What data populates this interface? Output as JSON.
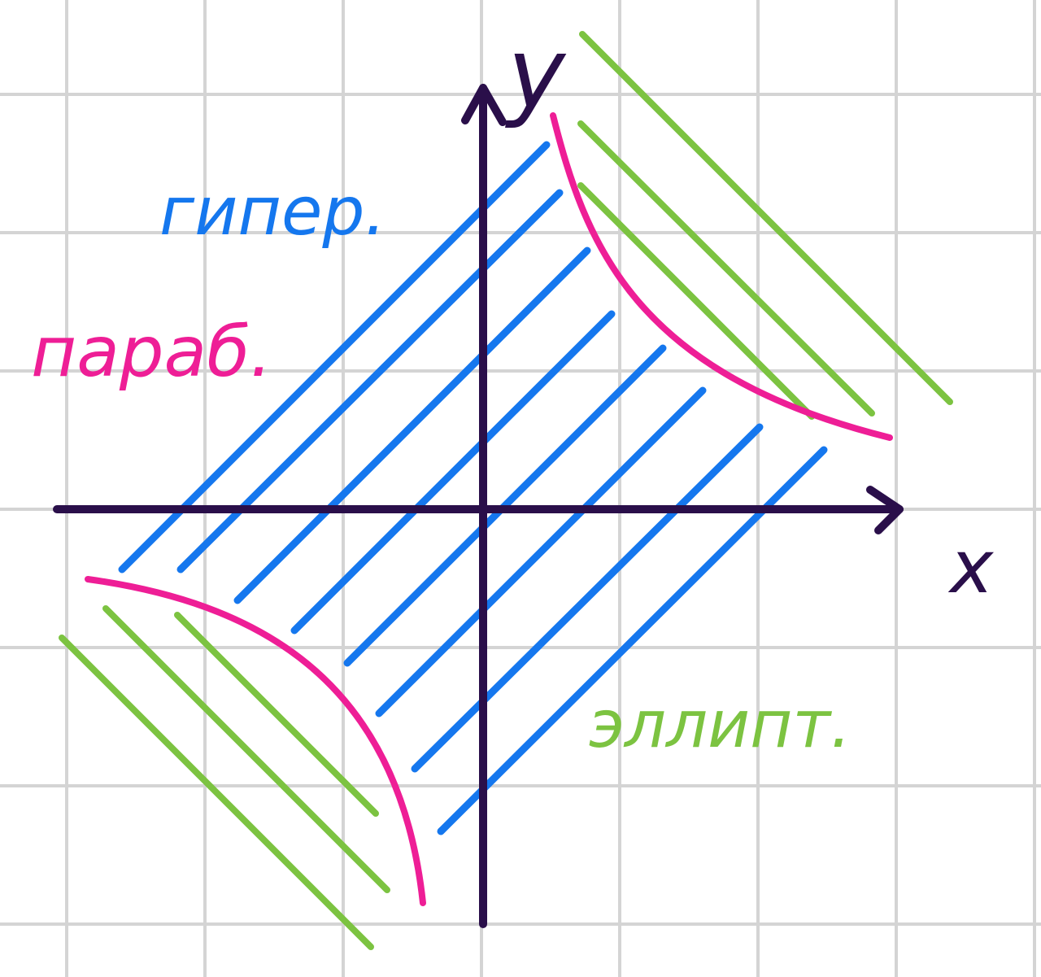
{
  "labels": {
    "y_axis": "y",
    "x_axis": "x",
    "hyperbolic": "гипер.",
    "parabolic": "параб.",
    "elliptic": "эллипт."
  },
  "colors": {
    "grid": "#d4d4d4",
    "axes": "#2a0f4a",
    "hyperbolic": "#1577ee",
    "parabolic": "#ee1e96",
    "elliptic": "#7cc341",
    "background": "#ffffff"
  }
}
